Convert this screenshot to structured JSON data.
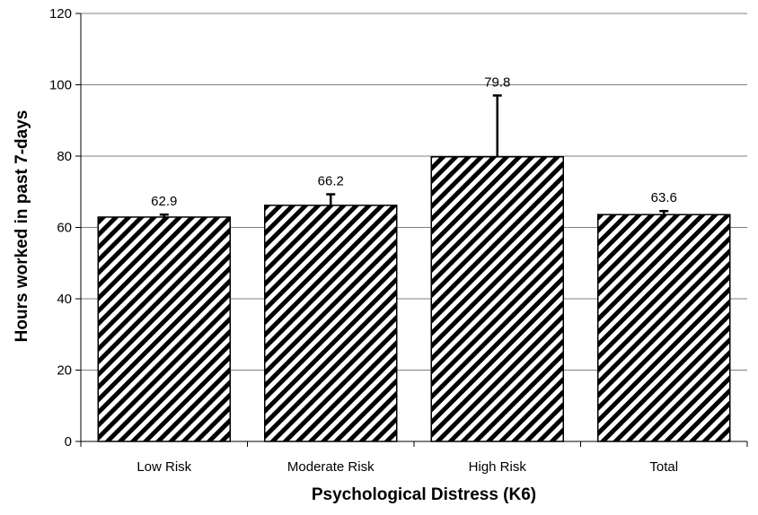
{
  "chart_data": {
    "type": "bar",
    "title": "",
    "xlabel": "Psychological Distress (K6)",
    "ylabel": "Hours worked in past 7-days",
    "categories": [
      "Low Risk",
      "Moderate Risk",
      "High Risk",
      "Total"
    ],
    "values": [
      62.9,
      66.2,
      79.8,
      63.6
    ],
    "data_labels": [
      "62.9",
      "66.2",
      "79.8",
      "63.6"
    ],
    "error_upper": [
      63.6,
      69.3,
      97.0,
      64.6
    ],
    "ylim": [
      0,
      120
    ],
    "yticks": [
      0,
      20,
      40,
      60,
      80,
      100,
      120
    ],
    "grid": "horizontal",
    "legend": "none",
    "bar_fill": "diagonal-hatch",
    "colors": {
      "bar_hatch": "#000000",
      "bar_background": "#ffffff",
      "axis": "#000000",
      "grid": "#808080"
    }
  }
}
